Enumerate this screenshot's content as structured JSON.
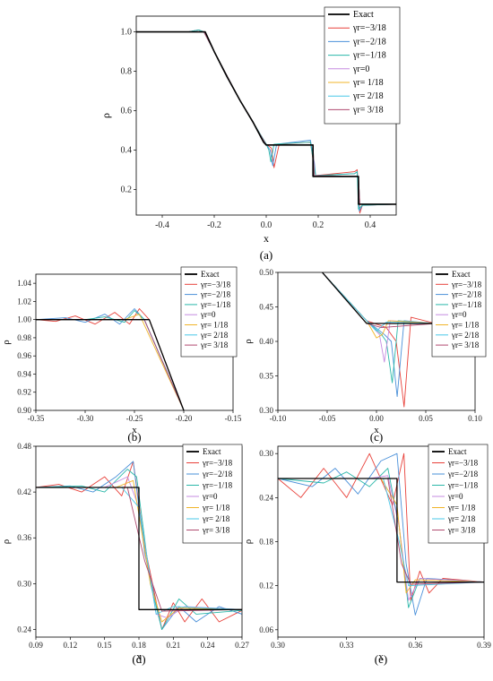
{
  "chart_data": [
    {
      "panel": "(a)",
      "type": "line",
      "xlabel": "x",
      "ylabel": "ρ",
      "xlim": [
        -0.5,
        0.5
      ],
      "ylim": [
        0.07,
        1.08
      ],
      "xticks": [
        "-0.4",
        "-0.2",
        "0.0",
        "0.2",
        "0.4"
      ],
      "yticks": [
        "0.2",
        "0.4",
        "0.6",
        "0.8",
        "1.0"
      ],
      "legend": "top-right",
      "series": [
        {
          "name": "Exact",
          "color": "#000000",
          "x": [
            -0.5,
            -0.235,
            -0.2,
            -0.15,
            -0.1,
            -0.05,
            -0.01,
            0.0,
            0.18,
            0.18,
            0.355,
            0.355,
            0.5
          ],
          "y": [
            1.0,
            1.0,
            0.9,
            0.77,
            0.65,
            0.54,
            0.44,
            0.426,
            0.426,
            0.266,
            0.266,
            0.125,
            0.125
          ]
        },
        {
          "name": "γr=−3/18",
          "color": "#e8413a",
          "x": [
            -0.5,
            -0.3,
            -0.26,
            -0.24,
            -0.2,
            -0.1,
            0.0,
            0.02,
            0.03,
            0.05,
            0.17,
            0.18,
            0.19,
            0.34,
            0.35,
            0.36,
            0.37,
            0.5
          ],
          "y": [
            1.0,
            1.0,
            1.01,
            1.0,
            0.9,
            0.65,
            0.43,
            0.41,
            0.31,
            0.43,
            0.44,
            0.35,
            0.27,
            0.29,
            0.3,
            0.08,
            0.12,
            0.125
          ]
        },
        {
          "name": "γr=−2/18",
          "color": "#4a90d9",
          "x": [
            -0.5,
            -0.3,
            -0.26,
            -0.24,
            -0.2,
            -0.1,
            0.0,
            0.015,
            0.025,
            0.04,
            0.17,
            0.185,
            0.19,
            0.34,
            0.35,
            0.358,
            0.37,
            0.5
          ],
          "y": [
            1.0,
            1.0,
            1.01,
            1.0,
            0.9,
            0.65,
            0.43,
            0.4,
            0.32,
            0.43,
            0.45,
            0.34,
            0.27,
            0.28,
            0.29,
            0.09,
            0.12,
            0.125
          ]
        },
        {
          "name": "γr=−1/18",
          "color": "#2ab7a9",
          "x": [
            -0.5,
            -0.3,
            -0.26,
            -0.24,
            -0.2,
            -0.1,
            0.0,
            0.01,
            0.018,
            0.03,
            0.17,
            0.183,
            0.19,
            0.34,
            0.35,
            0.355,
            0.37,
            0.5
          ],
          "y": [
            1.0,
            1.0,
            1.01,
            1.0,
            0.9,
            0.65,
            0.43,
            0.4,
            0.34,
            0.43,
            0.44,
            0.33,
            0.27,
            0.28,
            0.29,
            0.1,
            0.12,
            0.125
          ]
        },
        {
          "name": "γr=0",
          "color": "#c58be0",
          "x": [
            -0.5,
            -0.24,
            -0.2,
            -0.1,
            0.0,
            0.18,
            0.185,
            0.355,
            0.36,
            0.5
          ],
          "y": [
            1.0,
            1.0,
            0.9,
            0.65,
            0.426,
            0.426,
            0.27,
            0.266,
            0.125,
            0.125
          ]
        },
        {
          "name": "γr= 1/18",
          "color": "#f0b429",
          "x": [
            -0.5,
            -0.24,
            -0.2,
            -0.1,
            0.0,
            0.18,
            0.185,
            0.355,
            0.36,
            0.5
          ],
          "y": [
            1.0,
            1.0,
            0.9,
            0.65,
            0.426,
            0.426,
            0.27,
            0.266,
            0.125,
            0.125
          ]
        },
        {
          "name": "γr= 2/18",
          "color": "#48c8e8",
          "x": [
            -0.5,
            -0.24,
            -0.2,
            -0.1,
            0.0,
            0.18,
            0.185,
            0.355,
            0.36,
            0.5
          ],
          "y": [
            1.0,
            1.0,
            0.9,
            0.65,
            0.426,
            0.426,
            0.27,
            0.266,
            0.125,
            0.125
          ]
        },
        {
          "name": "γr= 3/18",
          "color": "#b04a70",
          "x": [
            -0.5,
            -0.24,
            -0.2,
            -0.1,
            0.0,
            0.18,
            0.185,
            0.355,
            0.36,
            0.5
          ],
          "y": [
            1.0,
            1.0,
            0.9,
            0.65,
            0.426,
            0.426,
            0.27,
            0.266,
            0.125,
            0.125
          ]
        }
      ]
    },
    {
      "panel": "(b)",
      "type": "line",
      "xlabel": "x",
      "ylabel": "ρ",
      "xlim": [
        -0.35,
        -0.15
      ],
      "ylim": [
        0.9,
        1.05
      ],
      "xticks": [
        "-0.35",
        "-0.30",
        "-0.25",
        "-0.20",
        "-0.15"
      ],
      "yticks": [
        "0.90",
        "0.92",
        "0.94",
        "0.96",
        "0.98",
        "1.00",
        "1.02",
        "1.04"
      ],
      "legend": "top-right",
      "series": [
        {
          "name": "Exact",
          "color": "#000000",
          "x": [
            -0.35,
            -0.235,
            -0.2
          ],
          "y": [
            1.0,
            1.0,
            0.9
          ]
        },
        {
          "name": "γr=−3/18",
          "color": "#e8413a",
          "x": [
            -0.35,
            -0.33,
            -0.31,
            -0.29,
            -0.27,
            -0.255,
            -0.245,
            -0.235,
            -0.2
          ],
          "y": [
            1.0,
            0.998,
            1.004,
            0.995,
            1.008,
            0.995,
            1.012,
            1.0,
            0.9
          ]
        },
        {
          "name": "γr=−2/18",
          "color": "#4a90d9",
          "x": [
            -0.35,
            -0.32,
            -0.3,
            -0.28,
            -0.265,
            -0.25,
            -0.24,
            -0.2
          ],
          "y": [
            1.0,
            1.002,
            0.997,
            1.006,
            0.995,
            1.012,
            1.0,
            0.9
          ]
        },
        {
          "name": "γr=−1/18",
          "color": "#2ab7a9",
          "x": [
            -0.35,
            -0.3,
            -0.28,
            -0.26,
            -0.25,
            -0.24,
            -0.2
          ],
          "y": [
            1.0,
            1.0,
            1.003,
            0.997,
            1.01,
            1.0,
            0.9
          ]
        },
        {
          "name": "γr=0",
          "color": "#c58be0",
          "x": [
            -0.35,
            -0.24,
            -0.2
          ],
          "y": [
            1.0,
            1.0,
            0.9
          ]
        },
        {
          "name": "γr= 1/18",
          "color": "#f0b429",
          "x": [
            -0.35,
            -0.26,
            -0.245,
            -0.2
          ],
          "y": [
            1.0,
            1.0,
            1.006,
            0.9
          ]
        },
        {
          "name": "γr= 2/18",
          "color": "#48c8e8",
          "x": [
            -0.35,
            -0.24,
            -0.2
          ],
          "y": [
            1.0,
            1.0,
            0.9
          ]
        },
        {
          "name": "γr= 3/18",
          "color": "#b04a70",
          "x": [
            -0.35,
            -0.24,
            -0.2
          ],
          "y": [
            1.0,
            1.0,
            0.9
          ]
        }
      ]
    },
    {
      "panel": "(c)",
      "type": "line",
      "xlabel": "x",
      "ylabel": "ρ",
      "xlim": [
        -0.1,
        0.1
      ],
      "ylim": [
        0.3,
        0.5
      ],
      "xticks": [
        "-0.10",
        "-0.05",
        "0.00",
        "0.05",
        "0.10"
      ],
      "yticks": [
        "0.30",
        "0.35",
        "0.40",
        "0.45",
        "0.50"
      ],
      "legend": "top-right",
      "series": [
        {
          "name": "Exact",
          "color": "#000000",
          "x": [
            -0.055,
            -0.01,
            0.06
          ],
          "y": [
            0.5,
            0.426,
            0.426
          ]
        },
        {
          "name": "γr=−3/18",
          "color": "#e8413a",
          "x": [
            -0.055,
            -0.01,
            0.01,
            0.02,
            0.028,
            0.035,
            0.06
          ],
          "y": [
            0.5,
            0.43,
            0.42,
            0.4,
            0.305,
            0.435,
            0.426
          ]
        },
        {
          "name": "γr=−2/18",
          "color": "#4a90d9",
          "x": [
            -0.055,
            -0.01,
            0.008,
            0.015,
            0.021,
            0.028,
            0.06
          ],
          "y": [
            0.5,
            0.43,
            0.41,
            0.4,
            0.32,
            0.43,
            0.426
          ]
        },
        {
          "name": "γr=−1/18",
          "color": "#2ab7a9",
          "x": [
            -0.055,
            -0.01,
            0.005,
            0.01,
            0.016,
            0.022,
            0.06
          ],
          "y": [
            0.5,
            0.43,
            0.41,
            0.4,
            0.34,
            0.43,
            0.426
          ]
        },
        {
          "name": "γr=0",
          "color": "#c58be0",
          "x": [
            -0.055,
            -0.01,
            0.003,
            0.008,
            0.014,
            0.06
          ],
          "y": [
            0.5,
            0.43,
            0.41,
            0.37,
            0.43,
            0.426
          ]
        },
        {
          "name": "γr= 1/18",
          "color": "#f0b429",
          "x": [
            -0.055,
            -0.01,
            0.0,
            0.006,
            0.012,
            0.06
          ],
          "y": [
            0.5,
            0.43,
            0.405,
            0.41,
            0.43,
            0.426
          ]
        },
        {
          "name": "γr= 2/18",
          "color": "#48c8e8",
          "x": [
            -0.055,
            -0.01,
            0.0,
            0.01,
            0.06
          ],
          "y": [
            0.5,
            0.43,
            0.415,
            0.428,
            0.426
          ]
        },
        {
          "name": "γr= 3/18",
          "color": "#b04a70",
          "x": [
            -0.055,
            -0.01,
            0.005,
            0.06
          ],
          "y": [
            0.5,
            0.426,
            0.42,
            0.426
          ]
        }
      ]
    },
    {
      "panel": "(d)",
      "type": "line",
      "xlabel": "x",
      "ylabel": "ρ",
      "xlim": [
        0.09,
        0.27
      ],
      "ylim": [
        0.23,
        0.48
      ],
      "xticks": [
        "0.09",
        "0.12",
        "0.15",
        "0.18",
        "0.21",
        "0.24",
        "0.27"
      ],
      "yticks": [
        "0.24",
        "0.30",
        "0.36",
        "0.42",
        "0.48"
      ],
      "legend": "top-right",
      "series": [
        {
          "name": "Exact",
          "color": "#000000",
          "x": [
            0.09,
            0.18,
            0.18,
            0.27
          ],
          "y": [
            0.426,
            0.426,
            0.266,
            0.266
          ]
        },
        {
          "name": "γr=−3/18",
          "color": "#e8413a",
          "x": [
            0.09,
            0.11,
            0.13,
            0.15,
            0.165,
            0.175,
            0.185,
            0.2,
            0.21,
            0.22,
            0.235,
            0.25,
            0.27
          ],
          "y": [
            0.426,
            0.43,
            0.42,
            0.44,
            0.415,
            0.46,
            0.35,
            0.24,
            0.275,
            0.25,
            0.28,
            0.25,
            0.265
          ]
        },
        {
          "name": "γr=−2/18",
          "color": "#4a90d9",
          "x": [
            0.09,
            0.12,
            0.14,
            0.16,
            0.175,
            0.185,
            0.2,
            0.215,
            0.23,
            0.25,
            0.27
          ],
          "y": [
            0.426,
            0.428,
            0.42,
            0.44,
            0.46,
            0.34,
            0.24,
            0.27,
            0.25,
            0.27,
            0.26
          ]
        },
        {
          "name": "γr=−1/18",
          "color": "#2ab7a9",
          "x": [
            0.09,
            0.13,
            0.15,
            0.17,
            0.178,
            0.19,
            0.2,
            0.215,
            0.23,
            0.27
          ],
          "y": [
            0.426,
            0.428,
            0.42,
            0.45,
            0.44,
            0.3,
            0.24,
            0.28,
            0.26,
            0.265
          ]
        },
        {
          "name": "γr=0",
          "color": "#c58be0",
          "x": [
            0.09,
            0.15,
            0.17,
            0.18,
            0.195,
            0.205,
            0.22,
            0.27
          ],
          "y": [
            0.426,
            0.426,
            0.44,
            0.4,
            0.26,
            0.255,
            0.27,
            0.266
          ]
        },
        {
          "name": "γr= 1/18",
          "color": "#f0b429",
          "x": [
            0.09,
            0.16,
            0.175,
            0.19,
            0.2,
            0.215,
            0.27
          ],
          "y": [
            0.426,
            0.426,
            0.435,
            0.3,
            0.25,
            0.268,
            0.266
          ]
        },
        {
          "name": "γr= 2/18",
          "color": "#48c8e8",
          "x": [
            0.09,
            0.165,
            0.18,
            0.195,
            0.21,
            0.27
          ],
          "y": [
            0.426,
            0.426,
            0.4,
            0.26,
            0.27,
            0.266
          ]
        },
        {
          "name": "γr= 3/18",
          "color": "#b04a70",
          "x": [
            0.09,
            0.17,
            0.185,
            0.2,
            0.27
          ],
          "y": [
            0.426,
            0.426,
            0.33,
            0.264,
            0.266
          ]
        }
      ]
    },
    {
      "panel": "(e)",
      "type": "line",
      "xlabel": "x",
      "ylabel": "ρ",
      "xlim": [
        0.3,
        0.39
      ],
      "ylim": [
        0.05,
        0.31
      ],
      "xticks": [
        "0.30",
        "0.33",
        "0.36",
        "0.39"
      ],
      "yticks": [
        "0.06",
        "0.12",
        "0.18",
        "0.24",
        "0.30"
      ],
      "legend": "top-right",
      "series": [
        {
          "name": "Exact",
          "color": "#000000",
          "x": [
            0.3,
            0.352,
            0.352,
            0.39
          ],
          "y": [
            0.266,
            0.266,
            0.125,
            0.125
          ]
        },
        {
          "name": "γr=−3/18",
          "color": "#e8413a",
          "x": [
            0.3,
            0.31,
            0.32,
            0.33,
            0.34,
            0.35,
            0.355,
            0.358,
            0.362,
            0.366,
            0.372,
            0.39
          ],
          "y": [
            0.266,
            0.24,
            0.28,
            0.24,
            0.3,
            0.23,
            0.3,
            0.1,
            0.14,
            0.11,
            0.13,
            0.125
          ]
        },
        {
          "name": "γr=−2/18",
          "color": "#4a90d9",
          "x": [
            0.3,
            0.315,
            0.325,
            0.335,
            0.345,
            0.352,
            0.356,
            0.36,
            0.365,
            0.39
          ],
          "y": [
            0.266,
            0.255,
            0.28,
            0.245,
            0.29,
            0.3,
            0.15,
            0.08,
            0.13,
            0.125
          ]
        },
        {
          "name": "γr=−1/18",
          "color": "#2ab7a9",
          "x": [
            0.3,
            0.32,
            0.33,
            0.34,
            0.348,
            0.353,
            0.357,
            0.362,
            0.39
          ],
          "y": [
            0.266,
            0.26,
            0.275,
            0.255,
            0.28,
            0.2,
            0.09,
            0.13,
            0.125
          ]
        },
        {
          "name": "γr=0",
          "color": "#c58be0",
          "x": [
            0.3,
            0.34,
            0.348,
            0.353,
            0.357,
            0.362,
            0.39
          ],
          "y": [
            0.266,
            0.266,
            0.27,
            0.2,
            0.1,
            0.13,
            0.125
          ]
        },
        {
          "name": "γr= 1/18",
          "color": "#f0b429",
          "x": [
            0.3,
            0.345,
            0.352,
            0.356,
            0.36,
            0.39
          ],
          "y": [
            0.266,
            0.266,
            0.23,
            0.11,
            0.128,
            0.125
          ]
        },
        {
          "name": "γr= 2/18",
          "color": "#48c8e8",
          "x": [
            0.3,
            0.346,
            0.353,
            0.357,
            0.39
          ],
          "y": [
            0.266,
            0.266,
            0.18,
            0.12,
            0.125
          ]
        },
        {
          "name": "γr= 3/18",
          "color": "#b04a70",
          "x": [
            0.3,
            0.348,
            0.354,
            0.358,
            0.39
          ],
          "y": [
            0.266,
            0.266,
            0.15,
            0.122,
            0.125
          ]
        }
      ]
    }
  ]
}
